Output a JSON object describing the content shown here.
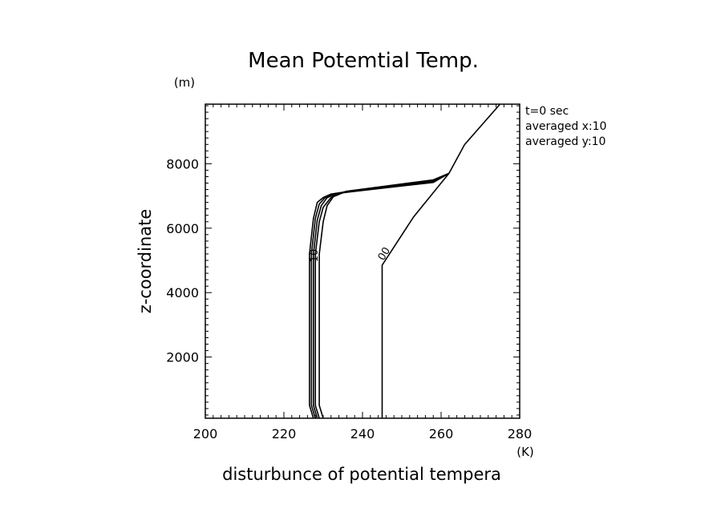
{
  "chart_data": {
    "type": "line",
    "title": "Mean Potemtial Temp.",
    "xlabel": "disturbunce of potential tempera",
    "ylabel": "z-coordinate",
    "x_unit": "(K)",
    "y_unit": "(m)",
    "xlim": [
      200,
      280
    ],
    "ylim": [
      100,
      9850
    ],
    "x_ticks": [
      "200",
      "220",
      "240",
      "260",
      "280"
    ],
    "y_ticks": [
      "2000",
      "4000",
      "6000",
      "8000"
    ],
    "info_lines": [
      "t=0 sec",
      "averaged  x:10",
      "averaged  y:10"
    ],
    "contour_labels": [
      "00",
      "10"
    ],
    "series": [
      {
        "points": [
          [
            245,
            100
          ],
          [
            245,
            4850
          ],
          [
            253,
            6350
          ],
          [
            262,
            7700
          ],
          [
            266,
            8600
          ],
          [
            275,
            9850
          ]
        ]
      },
      {
        "points": [
          [
            230,
            100
          ],
          [
            229,
            500
          ],
          [
            229,
            5200
          ],
          [
            230,
            6200
          ],
          [
            231,
            6700
          ],
          [
            233,
            7050
          ],
          [
            236,
            7150
          ],
          [
            258,
            7500
          ],
          [
            262,
            7700
          ]
        ]
      },
      {
        "points": [
          [
            229,
            100
          ],
          [
            228,
            500
          ],
          [
            228,
            5200
          ],
          [
            229,
            6200
          ],
          [
            230,
            6650
          ],
          [
            232,
            6950
          ],
          [
            235,
            7100
          ],
          [
            258,
            7480
          ],
          [
            262,
            7700
          ]
        ]
      },
      {
        "points": [
          [
            228.5,
            100
          ],
          [
            227.5,
            500
          ],
          [
            227.5,
            5200
          ],
          [
            228.5,
            6250
          ],
          [
            229.5,
            6700
          ],
          [
            231,
            6950
          ],
          [
            234,
            7100
          ],
          [
            258,
            7460
          ],
          [
            262,
            7700
          ]
        ]
      },
      {
        "points": [
          [
            228,
            100
          ],
          [
            227,
            500
          ],
          [
            227,
            5200
          ],
          [
            228,
            6300
          ],
          [
            229,
            6750
          ],
          [
            230.5,
            6950
          ],
          [
            233,
            7080
          ],
          [
            258,
            7440
          ],
          [
            262,
            7700
          ]
        ]
      },
      {
        "points": [
          [
            227.5,
            100
          ],
          [
            226.5,
            500
          ],
          [
            226.5,
            5200
          ],
          [
            227.5,
            6300
          ],
          [
            228.5,
            6800
          ],
          [
            230,
            6950
          ],
          [
            232,
            7060
          ],
          [
            258,
            7420
          ],
          [
            262,
            7700
          ]
        ]
      }
    ]
  }
}
